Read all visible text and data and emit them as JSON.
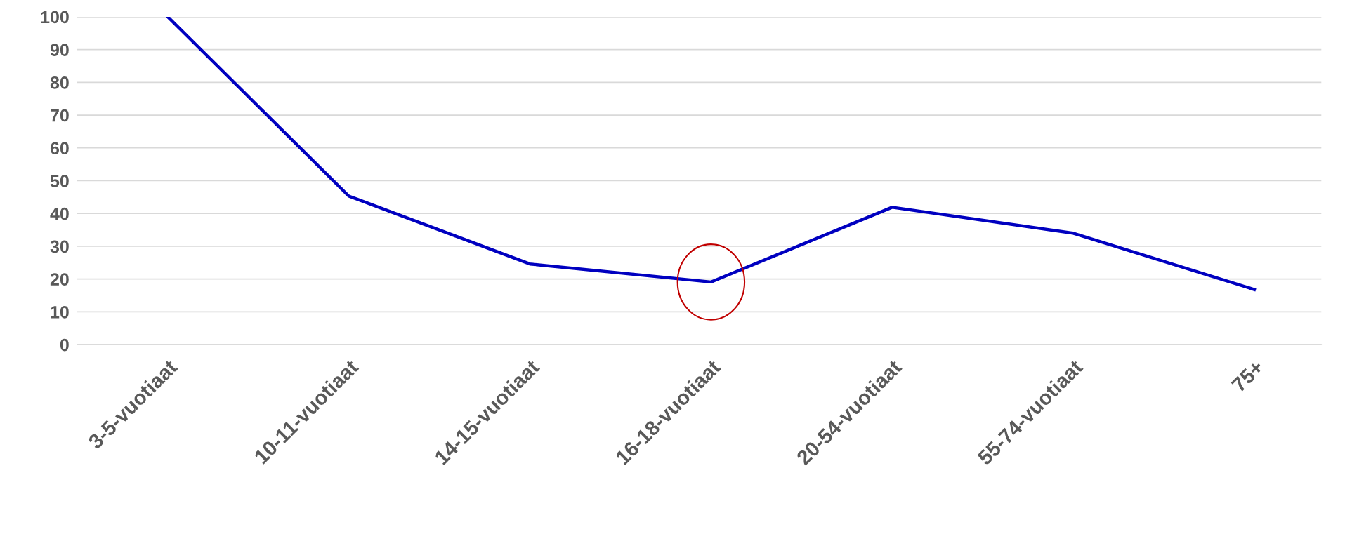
{
  "chart_data": {
    "type": "line",
    "categories": [
      "3-5-vuotiaat",
      "10-11-vuotiaat",
      "14-15-vuotiaat",
      "16-18-vuotiaat",
      "20-54-vuotiaat",
      "55-74-vuotiaat",
      "75+"
    ],
    "series": [
      {
        "color": "#0000c0",
        "values": [
          100,
          45.3,
          24.6,
          19.1,
          41.9,
          34.0,
          16.8
        ]
      }
    ],
    "ylim": [
      0,
      100
    ],
    "yticks": [
      0,
      10,
      20,
      30,
      40,
      50,
      60,
      70,
      80,
      90,
      100
    ],
    "grid": "y",
    "legend": false,
    "marker": "none",
    "line_style": "solid"
  }
}
